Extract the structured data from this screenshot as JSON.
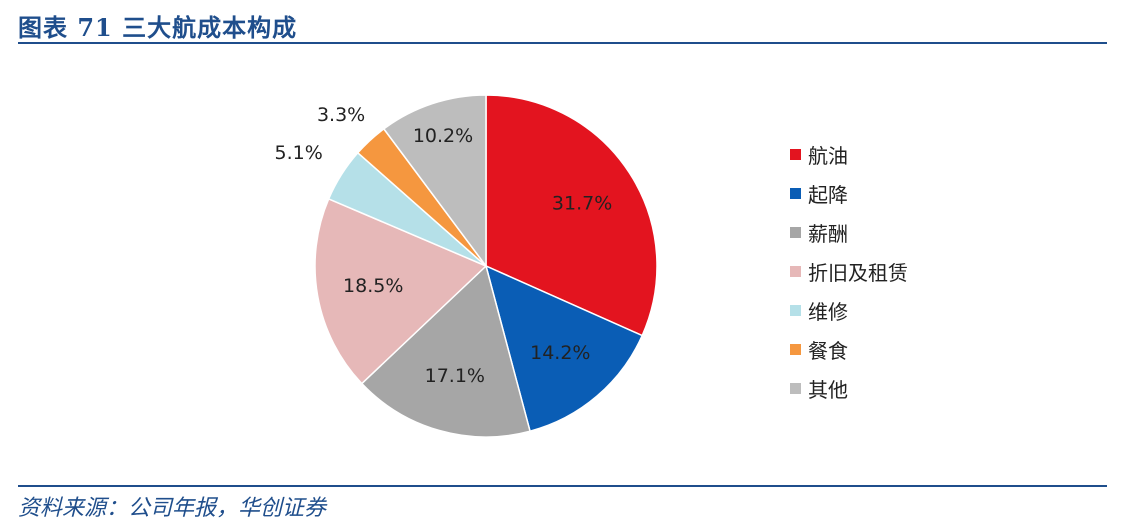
{
  "header": {
    "title": "图表 71 三大航成本构成"
  },
  "footer": {
    "source": "资料来源：公司年报，华创证券"
  },
  "chart_data": {
    "type": "pie",
    "title": "",
    "categories": [
      "航油",
      "起降",
      "薪酬",
      "折旧及租赁",
      "维修",
      "餐食",
      "其他"
    ],
    "values": [
      31.7,
      14.2,
      17.1,
      18.5,
      5.1,
      3.3,
      10.2
    ],
    "labels": [
      "31.7%",
      "14.2%",
      "17.1%",
      "18.5%",
      "5.1%",
      "3.3%",
      "10.2%"
    ],
    "colors": [
      "#e3141f",
      "#0a5db5",
      "#a6a6a6",
      "#e6b8b8",
      "#b5e0e8",
      "#f5973f",
      "#bdbdbd"
    ],
    "legend_position": "right"
  }
}
